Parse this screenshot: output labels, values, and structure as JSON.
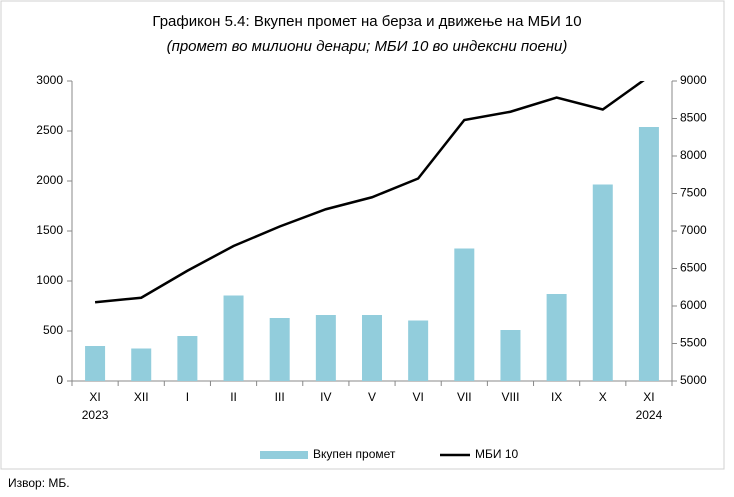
{
  "chart_data": {
    "type": "bar_line",
    "title": "Графикон 5.4: Вкупен промет на берза и движење на МБИ 10",
    "subtitle": "(промет во милиони денари; МБИ 10 во индексни поени)",
    "categories": [
      "XI",
      "XII",
      "I",
      "II",
      "III",
      "IV",
      "V",
      "VI",
      "VII",
      "VIII",
      "IX",
      "X",
      "XI"
    ],
    "category_years": [
      "2023",
      null,
      null,
      null,
      null,
      null,
      null,
      null,
      null,
      null,
      null,
      null,
      "2024"
    ],
    "series": [
      {
        "name": "Вкупен промет",
        "type": "bar",
        "color": "#92cddc",
        "values": [
          350,
          325,
          450,
          855,
          630,
          660,
          660,
          605,
          1325,
          510,
          870,
          1965,
          2540
        ]
      },
      {
        "name": "МБИ 10",
        "type": "line",
        "axis": "y2",
        "color": "#000000",
        "values": [
          6050,
          6110,
          6470,
          6800,
          7060,
          7290,
          7450,
          7700,
          8480,
          8590,
          8780,
          8620,
          9060
        ]
      }
    ],
    "ylim": [
      0,
      3000
    ],
    "yticks": [
      0,
      500,
      1000,
      1500,
      2000,
      2500,
      3000
    ],
    "y2lim": [
      5000,
      9000
    ],
    "y2ticks": [
      5000,
      5500,
      6000,
      6500,
      7000,
      7500,
      8000,
      8500,
      9000
    ],
    "grid": false,
    "legend": "bottom",
    "source": "Извор: МБ."
  }
}
